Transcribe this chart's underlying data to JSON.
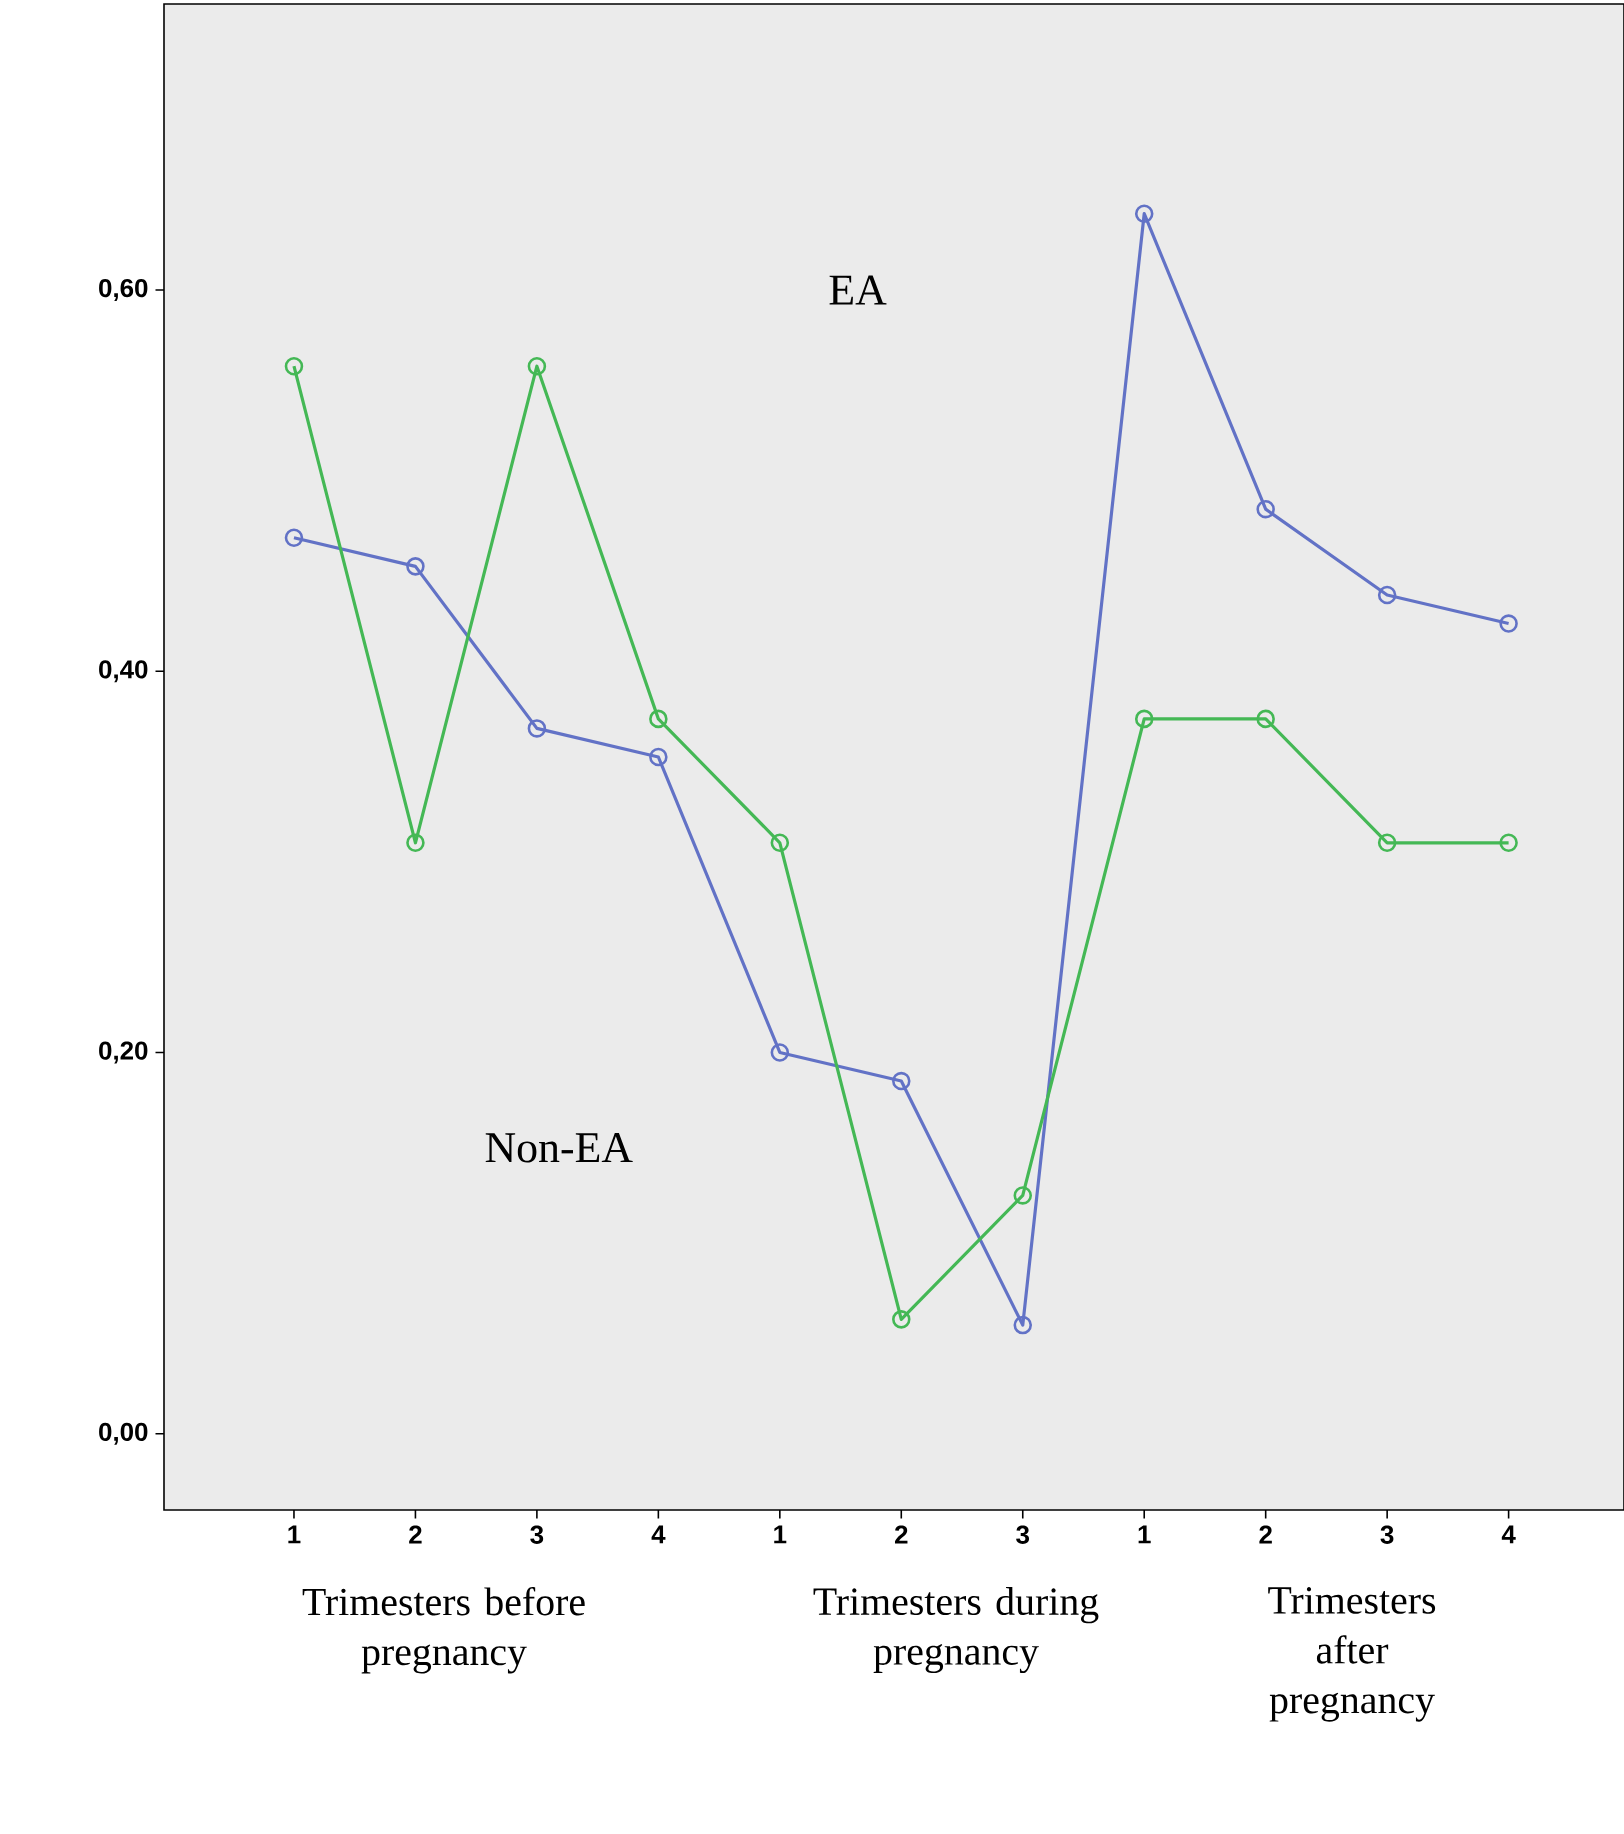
{
  "chart_data": {
    "type": "line",
    "categories": [
      "1",
      "2",
      "3",
      "4",
      "1",
      "2",
      "3",
      "1",
      "2",
      "3",
      "4"
    ],
    "series": [
      {
        "color": "#6272c6",
        "values": [
          0.47,
          0.455,
          0.37,
          0.355,
          0.2,
          0.185,
          0.057,
          0.64,
          0.485,
          0.44,
          0.425
        ]
      },
      {
        "color": "#44b855",
        "values": [
          0.56,
          0.31,
          0.56,
          0.375,
          0.31,
          0.06,
          0.125,
          0.375,
          0.375,
          0.31,
          0.31
        ]
      }
    ],
    "ylim": [
      -0.04,
      0.75
    ],
    "yticks": [
      {
        "value": 0,
        "label": "0,00"
      },
      {
        "value": 0.2,
        "label": "0,20"
      },
      {
        "value": 0.4,
        "label": "0,40"
      },
      {
        "value": 0.6,
        "label": "0,60"
      }
    ],
    "annotations": [
      "EA",
      "Non-EA",
      "Trimesters before pregnancy",
      "Trimesters during pregnancy",
      "Trimesters after pregnancy"
    ],
    "marker": "circle",
    "line_style": "solid",
    "grid": false
  }
}
